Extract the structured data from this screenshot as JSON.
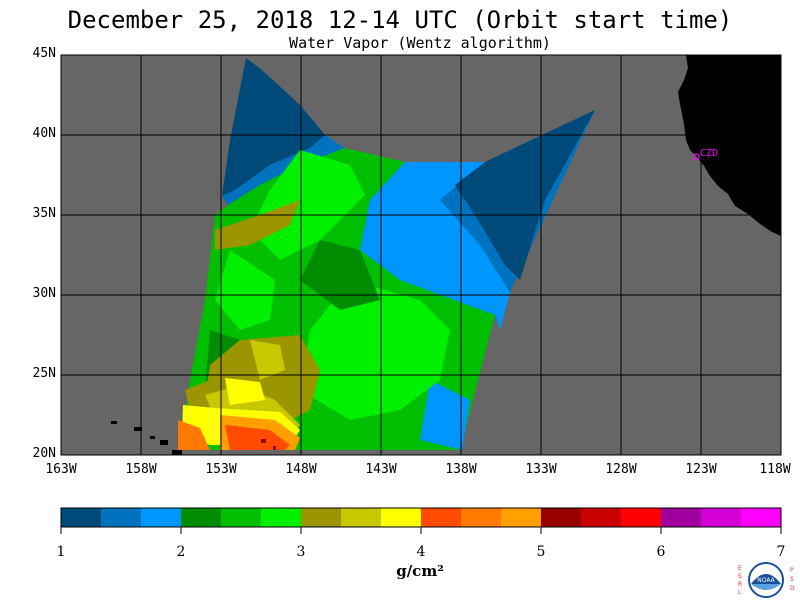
{
  "header": {
    "title": "December 25, 2018  12-14 UTC  (Orbit start time)",
    "subtitle": "Water Vapor (Wentz algorithm)"
  },
  "map": {
    "lat_ticks": [
      "45N",
      "40N",
      "35N",
      "30N",
      "25N",
      "20N"
    ],
    "lon_ticks": [
      "163W",
      "158W",
      "153W",
      "148W",
      "143W",
      "138W",
      "133W",
      "128W",
      "123W",
      "118W"
    ],
    "station_label": "CZD",
    "colors": {
      "ocean": "#666666",
      "land": "#000000",
      "grid": "#000000",
      "station": "#ff00ff"
    }
  },
  "colorbar": {
    "labels": [
      "1",
      "2",
      "3",
      "4",
      "5",
      "6",
      "7"
    ],
    "unit": "g/cm²",
    "colors": [
      "#004a7a",
      "#0072be",
      "#0096ff",
      "#008c00",
      "#00be00",
      "#00f000",
      "#9b9600",
      "#c8c800",
      "#ffff00",
      "#ff4b00",
      "#ff7800",
      "#ffa000",
      "#960000",
      "#c80000",
      "#ff0000",
      "#a0009e",
      "#d200d2",
      "#ff00ff"
    ]
  },
  "logo": {
    "text": "NOAA",
    "left_letters": [
      "E",
      "S",
      "R",
      "L"
    ],
    "right_letters": [
      "P",
      "S",
      "D"
    ]
  }
}
